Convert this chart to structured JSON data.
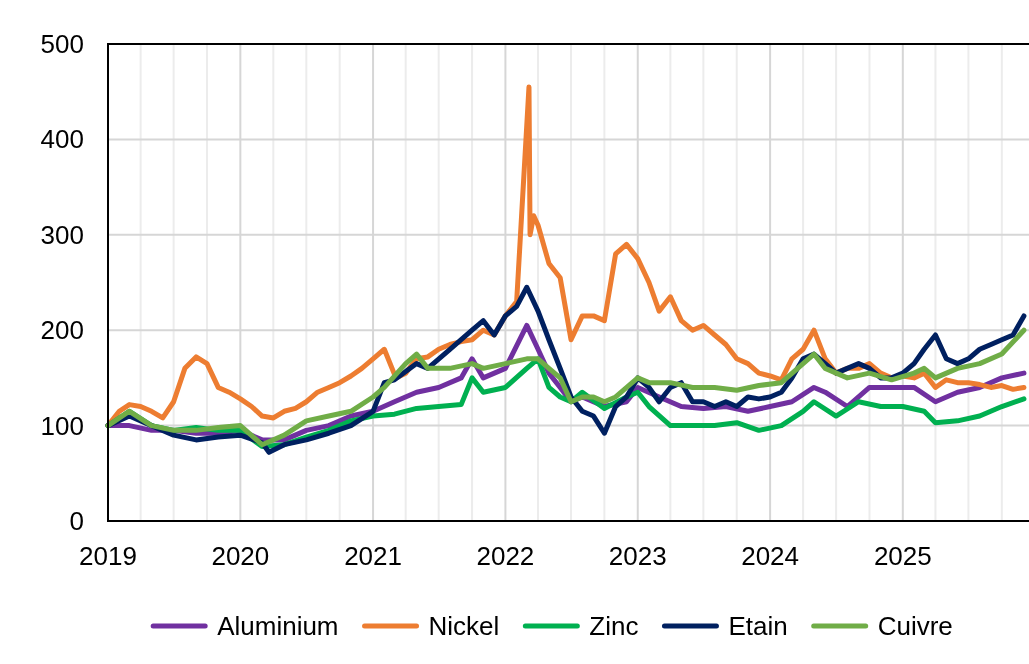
{
  "chart_data": {
    "type": "line",
    "xlim": [
      "2019-01-01",
      "2025-12-15"
    ],
    "xticks": [
      {
        "value": "2019-01-01",
        "label": "2019"
      },
      {
        "value": "2019-04-01",
        "label": null
      },
      {
        "value": "2019-07-01",
        "label": null
      },
      {
        "value": "2019-10-01",
        "label": null
      },
      {
        "value": "2020-01-01",
        "label": "2020"
      },
      {
        "value": "2020-04-01",
        "label": null
      },
      {
        "value": "2020-07-01",
        "label": null
      },
      {
        "value": "2020-10-01",
        "label": null
      },
      {
        "value": "2021-01-01",
        "label": "2021"
      },
      {
        "value": "2021-04-01",
        "label": null
      },
      {
        "value": "2021-07-01",
        "label": null
      },
      {
        "value": "2021-10-01",
        "label": null
      },
      {
        "value": "2022-01-01",
        "label": "2022"
      },
      {
        "value": "2022-04-01",
        "label": null
      },
      {
        "value": "2022-07-01",
        "label": null
      },
      {
        "value": "2022-10-01",
        "label": null
      },
      {
        "value": "2023-01-01",
        "label": "2023"
      },
      {
        "value": "2023-04-01",
        "label": null
      },
      {
        "value": "2023-07-01",
        "label": null
      },
      {
        "value": "2023-10-01",
        "label": null
      },
      {
        "value": "2024-01-01",
        "label": "2024"
      },
      {
        "value": "2024-04-01",
        "label": null
      },
      {
        "value": "2024-07-01",
        "label": null
      },
      {
        "value": "2024-10-01",
        "label": null
      },
      {
        "value": "2025-01-01",
        "label": "2025"
      },
      {
        "value": "2025-04-01",
        "label": null
      },
      {
        "value": "2025-07-01",
        "label": null
      },
      {
        "value": "2025-10-01",
        "label": null
      }
    ],
    "ylim": [
      0,
      500
    ],
    "yticks": [
      0,
      100,
      200,
      300,
      400,
      500
    ],
    "grid": true,
    "legend": "bottom",
    "marker": "none",
    "line_style": "solid",
    "series": [
      {
        "name": "Aluminium",
        "color": "#7030a0",
        "x": [
          "2019-01",
          "2019-03",
          "2019-05",
          "2019-07",
          "2019-09",
          "2019-11",
          "2020-01",
          "2020-03",
          "2020-05",
          "2020-07",
          "2020-09",
          "2020-11",
          "2021-01",
          "2021-03",
          "2021-05",
          "2021-07",
          "2021-09",
          "2021-10",
          "2021-11",
          "2022-01",
          "2022-03",
          "2022-04",
          "2022-05",
          "2022-06",
          "2022-07",
          "2022-08",
          "2022-10",
          "2022-12",
          "2023-01",
          "2023-03",
          "2023-05",
          "2023-07",
          "2023-09",
          "2023-11",
          "2024-01",
          "2024-03",
          "2024-05",
          "2024-06",
          "2024-08",
          "2024-10",
          "2024-12",
          "2025-02",
          "2025-04",
          "2025-06",
          "2025-08",
          "2025-10",
          "2025-12"
        ],
        "values": [
          100,
          100,
          95,
          95,
          92,
          92,
          95,
          85,
          85,
          95,
          100,
          110,
          115,
          125,
          135,
          140,
          150,
          170,
          150,
          160,
          205,
          180,
          155,
          140,
          125,
          130,
          120,
          125,
          140,
          130,
          120,
          118,
          120,
          115,
          120,
          125,
          140,
          135,
          120,
          140,
          140,
          140,
          125,
          135,
          140,
          150,
          155
        ]
      },
      {
        "name": "Nickel",
        "color": "#ed7d31",
        "x": [
          "2019-01",
          "2019-02",
          "2019-03",
          "2019-04",
          "2019-05",
          "2019-06",
          "2019-07",
          "2019-08",
          "2019-09",
          "2019-10",
          "2019-11",
          "2019-12",
          "2020-01",
          "2020-02",
          "2020-03",
          "2020-04",
          "2020-05",
          "2020-06",
          "2020-07",
          "2020-08",
          "2020-09",
          "2020-10",
          "2020-11",
          "2020-12",
          "2021-01",
          "2021-02",
          "2021-03-05",
          "2021-04",
          "2021-05",
          "2021-06",
          "2021-07",
          "2021-08",
          "2021-09",
          "2021-10",
          "2021-11",
          "2021-12",
          "2022-01",
          "2022-02",
          "2022-03-07",
          "2022-03-10",
          "2022-03-20",
          "2022-04",
          "2022-05",
          "2022-06",
          "2022-07",
          "2022-08",
          "2022-09",
          "2022-10",
          "2022-11",
          "2022-12",
          "2023-01",
          "2023-02",
          "2023-03",
          "2023-04",
          "2023-05",
          "2023-06",
          "2023-07",
          "2023-08",
          "2023-09",
          "2023-10",
          "2023-11",
          "2023-12",
          "2024-01",
          "2024-02",
          "2024-03",
          "2024-04",
          "2024-05",
          "2024-06",
          "2024-07",
          "2024-08",
          "2024-09",
          "2024-10",
          "2024-11",
          "2024-12",
          "2025-01",
          "2025-02",
          "2025-03",
          "2025-04",
          "2025-05",
          "2025-06",
          "2025-07",
          "2025-08",
          "2025-09",
          "2025-10",
          "2025-11",
          "2025-12"
        ],
        "values": [
          100,
          115,
          122,
          120,
          115,
          108,
          125,
          160,
          172,
          165,
          140,
          135,
          128,
          120,
          110,
          108,
          115,
          118,
          125,
          135,
          140,
          145,
          152,
          160,
          170,
          180,
          150,
          155,
          170,
          172,
          180,
          185,
          188,
          190,
          200,
          195,
          215,
          230,
          455,
          300,
          320,
          310,
          270,
          255,
          190,
          215,
          215,
          210,
          280,
          290,
          275,
          250,
          220,
          235,
          210,
          200,
          205,
          195,
          185,
          170,
          165,
          155,
          152,
          148,
          170,
          180,
          200,
          170,
          155,
          160,
          160,
          165,
          155,
          150,
          152,
          150,
          155,
          140,
          148,
          145,
          145,
          143,
          140,
          142,
          138,
          140
        ]
      },
      {
        "name": "Zinc",
        "color": "#00b050",
        "x": [
          "2019-01",
          "2019-03",
          "2019-05",
          "2019-07",
          "2019-09",
          "2019-11",
          "2020-01",
          "2020-03",
          "2020-05",
          "2020-07",
          "2020-09",
          "2020-11",
          "2021-01",
          "2021-03",
          "2021-05",
          "2021-07",
          "2021-09",
          "2021-10",
          "2021-11",
          "2022-01",
          "2022-03",
          "2022-04",
          "2022-05",
          "2022-06",
          "2022-07",
          "2022-08",
          "2022-10",
          "2022-12",
          "2023-01",
          "2023-02",
          "2023-04",
          "2023-06",
          "2023-08",
          "2023-10",
          "2023-12",
          "2024-02",
          "2024-04",
          "2024-05",
          "2024-07",
          "2024-09",
          "2024-11",
          "2025-01",
          "2025-03",
          "2025-04",
          "2025-06",
          "2025-08",
          "2025-10",
          "2025-12"
        ],
        "values": [
          100,
          115,
          100,
          95,
          98,
          95,
          95,
          78,
          80,
          88,
          95,
          105,
          110,
          112,
          118,
          120,
          122,
          150,
          135,
          140,
          160,
          170,
          140,
          130,
          125,
          135,
          118,
          130,
          135,
          120,
          100,
          100,
          100,
          103,
          95,
          100,
          115,
          125,
          110,
          125,
          120,
          120,
          115,
          103,
          105,
          110,
          120,
          128
        ]
      },
      {
        "name": "Etain",
        "color": "#002060",
        "x": [
          "2019-01",
          "2019-03",
          "2019-05",
          "2019-07",
          "2019-09",
          "2019-11",
          "2020-01",
          "2020-03",
          "2020-03-20",
          "2020-05",
          "2020-07",
          "2020-09",
          "2020-11",
          "2021-01",
          "2021-02",
          "2021-03",
          "2021-05",
          "2021-06",
          "2021-08",
          "2021-10",
          "2021-11",
          "2021-12",
          "2022-01",
          "2022-02",
          "2022-03",
          "2022-04",
          "2022-05",
          "2022-06",
          "2022-07",
          "2022-08",
          "2022-09",
          "2022-10",
          "2022-11",
          "2022-12",
          "2023-01",
          "2023-02",
          "2023-03",
          "2023-04",
          "2023-05",
          "2023-06",
          "2023-07",
          "2023-08",
          "2023-09",
          "2023-10",
          "2023-11",
          "2023-12",
          "2024-01",
          "2024-02",
          "2024-03",
          "2024-04",
          "2024-05",
          "2024-06",
          "2024-07",
          "2024-08",
          "2024-09",
          "2024-10",
          "2024-11",
          "2024-12",
          "2025-01",
          "2025-02",
          "2025-03",
          "2025-04",
          "2025-05",
          "2025-06",
          "2025-07",
          "2025-08",
          "2025-09",
          "2025-10",
          "2025-11",
          "2025-12"
        ],
        "values": [
          100,
          110,
          100,
          90,
          85,
          88,
          90,
          82,
          72,
          80,
          85,
          92,
          100,
          115,
          145,
          148,
          165,
          160,
          180,
          200,
          210,
          195,
          215,
          225,
          245,
          220,
          190,
          160,
          130,
          115,
          110,
          92,
          120,
          130,
          150,
          140,
          125,
          140,
          145,
          125,
          125,
          120,
          125,
          120,
          130,
          128,
          130,
          135,
          150,
          170,
          175,
          165,
          155,
          160,
          165,
          160,
          150,
          150,
          155,
          165,
          180,
          195,
          170,
          165,
          170,
          180,
          185,
          190,
          195,
          215
        ]
      },
      {
        "name": "Cuivre",
        "color": "#70ad47",
        "x": [
          "2019-01",
          "2019-03",
          "2019-05",
          "2019-07",
          "2019-09",
          "2019-11",
          "2020-01",
          "2020-03",
          "2020-05",
          "2020-07",
          "2020-09",
          "2020-11",
          "2021-01",
          "2021-02",
          "2021-04",
          "2021-05",
          "2021-06",
          "2021-08",
          "2021-10",
          "2021-11",
          "2022-01",
          "2022-03",
          "2022-04",
          "2022-05",
          "2022-06",
          "2022-07",
          "2022-08",
          "2022-09",
          "2022-10",
          "2022-11",
          "2023-01",
          "2023-02",
          "2023-04",
          "2023-06",
          "2023-08",
          "2023-10",
          "2023-12",
          "2024-02",
          "2024-04",
          "2024-05",
          "2024-06",
          "2024-08",
          "2024-10",
          "2024-12",
          "2025-02",
          "2025-03",
          "2025-04",
          "2025-06",
          "2025-08",
          "2025-10",
          "2025-12"
        ],
        "values": [
          100,
          115,
          100,
          95,
          95,
          98,
          100,
          80,
          90,
          105,
          110,
          115,
          130,
          140,
          165,
          175,
          160,
          160,
          165,
          160,
          165,
          170,
          170,
          160,
          150,
          125,
          130,
          130,
          125,
          130,
          150,
          145,
          145,
          140,
          140,
          137,
          142,
          145,
          165,
          175,
          160,
          150,
          155,
          148,
          155,
          160,
          150,
          160,
          165,
          175,
          200
        ]
      }
    ]
  }
}
